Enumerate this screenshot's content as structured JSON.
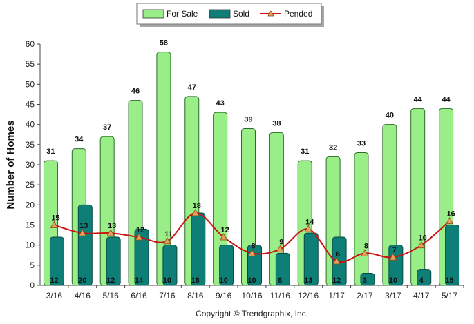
{
  "chart_data": {
    "type": "bar",
    "categories": [
      "3/16",
      "4/16",
      "5/16",
      "6/16",
      "7/16",
      "8/16",
      "9/16",
      "10/16",
      "11/16",
      "12/16",
      "1/17",
      "2/17",
      "3/17",
      "4/17",
      "5/17"
    ],
    "series": [
      {
        "name": "For Sale",
        "kind": "bar",
        "color": "#99ee88",
        "values": [
          31,
          34,
          37,
          46,
          58,
          47,
          43,
          39,
          38,
          31,
          32,
          33,
          40,
          44,
          44
        ]
      },
      {
        "name": "Sold",
        "kind": "bar",
        "color": "#0e7f77",
        "values": [
          12,
          20,
          12,
          14,
          10,
          18,
          10,
          10,
          8,
          13,
          12,
          3,
          10,
          4,
          15
        ]
      },
      {
        "name": "Pended",
        "kind": "line",
        "color": "#cc1111",
        "marker_color": "#e8a060",
        "values": [
          15,
          13,
          13,
          12,
          11,
          18,
          12,
          8,
          9,
          14,
          6,
          8,
          7,
          10,
          16
        ]
      }
    ],
    "ylabel": "Number of Homes",
    "xlabel": "",
    "ylim": [
      0,
      60
    ],
    "yticks": [
      0,
      5,
      10,
      15,
      20,
      25,
      30,
      35,
      40,
      45,
      50,
      55,
      60
    ],
    "grid": false,
    "legend_position": "top-center",
    "footer": "Copyright © Trendgraphix, Inc."
  }
}
